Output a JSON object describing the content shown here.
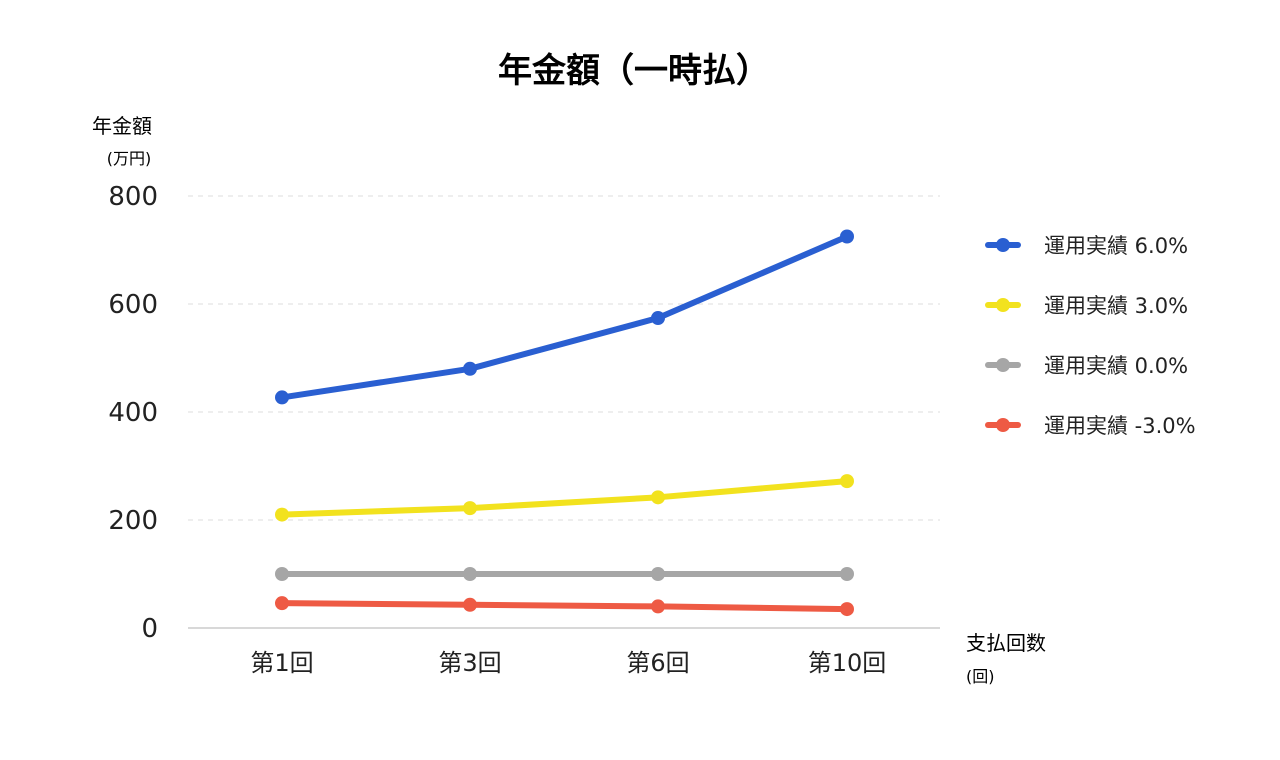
{
  "chart_data": {
    "type": "line",
    "title": "年金額（一時払）",
    "ylabel": "年金額",
    "ylabel_unit": "(万円)",
    "xlabel": "支払回数",
    "xlabel_unit": "(回)",
    "categories": [
      "第1回",
      "第3回",
      "第6回",
      "第10回"
    ],
    "ylim": [
      0,
      800
    ],
    "yticks": [
      0,
      200,
      400,
      600,
      800
    ],
    "grid": true,
    "legend_position": "right",
    "series": [
      {
        "name": "運用実績 6.0%",
        "color": "#2a5fd1",
        "values": [
          427,
          480,
          574,
          725
        ]
      },
      {
        "name": "運用実績 3.0%",
        "color": "#f2e21e",
        "values": [
          210,
          222,
          242,
          272
        ]
      },
      {
        "name": "運用実績 0.0%",
        "color": "#a6a6a6",
        "values": [
          100,
          100,
          100,
          100
        ]
      },
      {
        "name": "運用実績 -3.0%",
        "color": "#ee5a44",
        "values": [
          46,
          43,
          40,
          35
        ]
      }
    ]
  }
}
